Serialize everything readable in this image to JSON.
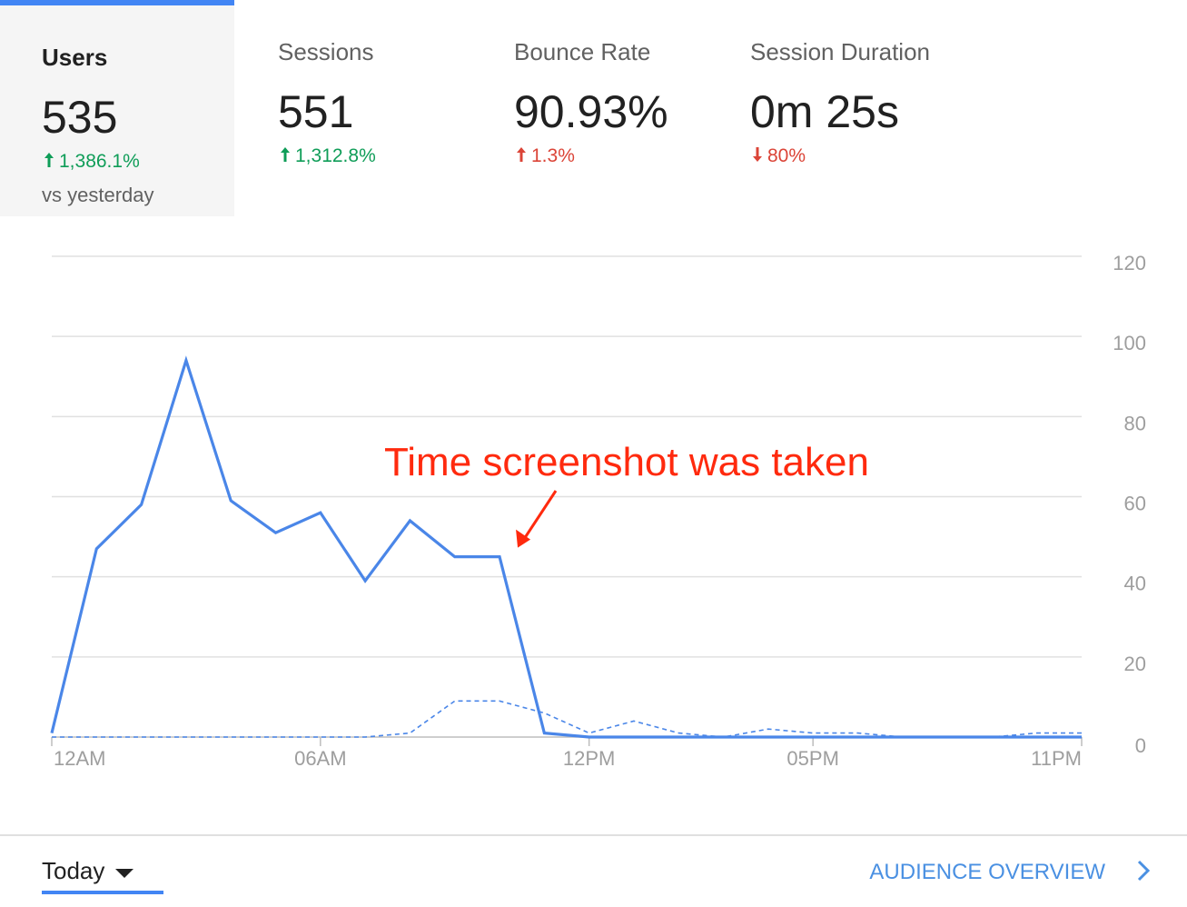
{
  "tabs": [
    {
      "label": "Users",
      "value": "535",
      "change": "1,386.1%",
      "direction": "up",
      "color": "#0f9d58"
    },
    {
      "label": "Sessions",
      "value": "551",
      "change": "1,312.8%",
      "direction": "up",
      "color": "#0f9d58"
    },
    {
      "label": "Bounce Rate",
      "value": "90.93%",
      "change": "1.3%",
      "direction": "up",
      "color": "#db4437"
    },
    {
      "label": "Session Duration",
      "value": "0m 25s",
      "change": "80%",
      "direction": "down",
      "color": "#db4437"
    }
  ],
  "active_tab": 0,
  "comparison": "vs yesterday",
  "chart_data": {
    "type": "line",
    "categories": [
      "12AM",
      null,
      null,
      null,
      null,
      null,
      "06AM",
      null,
      null,
      null,
      null,
      null,
      "12PM",
      null,
      null,
      null,
      null,
      "05PM",
      null,
      null,
      null,
      null,
      null,
      "11PM"
    ],
    "series": [
      {
        "color": "#4a86e8",
        "dashed": false,
        "values": [
          1,
          47,
          58,
          94,
          59,
          51,
          56,
          39,
          54,
          45,
          45,
          1,
          0,
          0,
          0,
          0,
          0,
          0,
          0,
          0,
          0,
          0,
          0,
          0
        ]
      },
      {
        "color": "#4a86e8",
        "dashed": true,
        "values": [
          0,
          0,
          0,
          0,
          0,
          0,
          0,
          0,
          1,
          9,
          9,
          6,
          1,
          4,
          1,
          0,
          2,
          1,
          1,
          0,
          0,
          0,
          1,
          1
        ]
      }
    ],
    "ylim": [
      0,
      120
    ],
    "yticks": [
      0,
      20,
      40,
      60,
      80,
      100,
      120
    ],
    "grid": true,
    "annotation": {
      "text": "Time screenshot was taken",
      "index": 10,
      "color": "#ff2a0e"
    }
  },
  "footer": {
    "range": "Today",
    "link": "AUDIENCE OVERVIEW"
  }
}
